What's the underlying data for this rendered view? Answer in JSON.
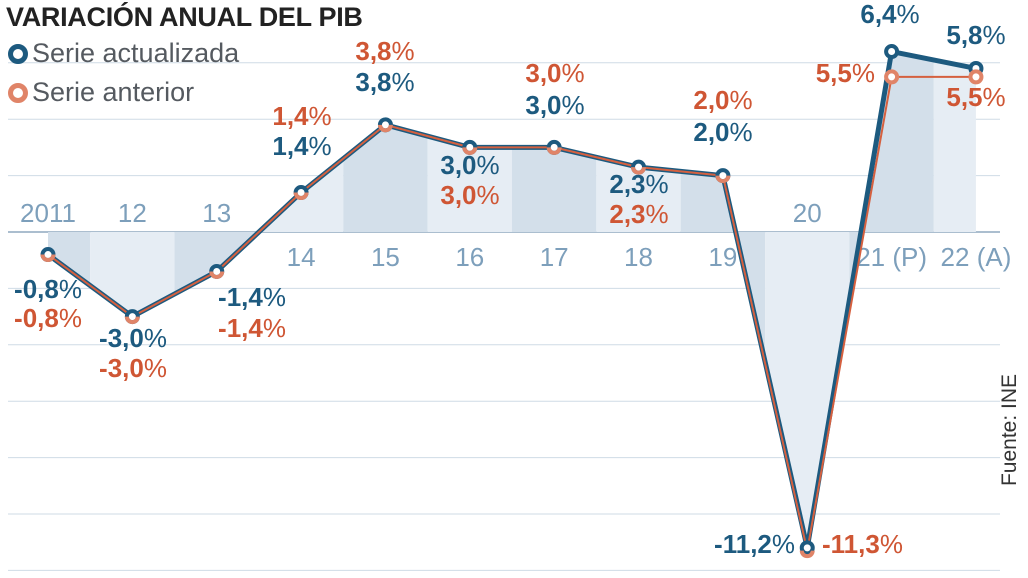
{
  "chart_data": {
    "type": "line",
    "title": "VARIACIÓN ANUAL DEL PIB",
    "categories": [
      "2011",
      "12",
      "13",
      "14",
      "15",
      "16",
      "17",
      "18",
      "19",
      "20",
      "21 (P)",
      "22 (A)"
    ],
    "series": [
      {
        "name": "Serie actualizada",
        "color": "#1d5a7f",
        "values": [
          -0.8,
          -3.0,
          -1.4,
          1.4,
          3.8,
          3.0,
          3.0,
          2.3,
          2.0,
          -11.2,
          6.4,
          5.8
        ],
        "labels": [
          "-0,8%",
          "-3,0%",
          "-1,4%",
          "1,4%",
          "3,8%",
          "3,0%",
          "3,0%",
          "2,3%",
          "2,0%",
          "-11,2%",
          "6,4%",
          "5,8%"
        ]
      },
      {
        "name": "Serie anterior",
        "color": "#d5603f",
        "values": [
          -0.8,
          -3.0,
          -1.4,
          1.4,
          3.8,
          3.0,
          3.0,
          2.3,
          2.0,
          -11.3,
          5.5,
          5.5
        ],
        "labels": [
          "-0,8%",
          "-3,0%",
          "-1,4%",
          "1,4%",
          "3,8%",
          "3,0%",
          "3,0%",
          "2,3%",
          "2,0%",
          "-11,3%",
          "5,5%",
          "5,5%"
        ]
      }
    ],
    "ylim": [
      -12,
      8
    ],
    "grid": true,
    "legend": "top-left",
    "source": "Fuente: INE"
  }
}
